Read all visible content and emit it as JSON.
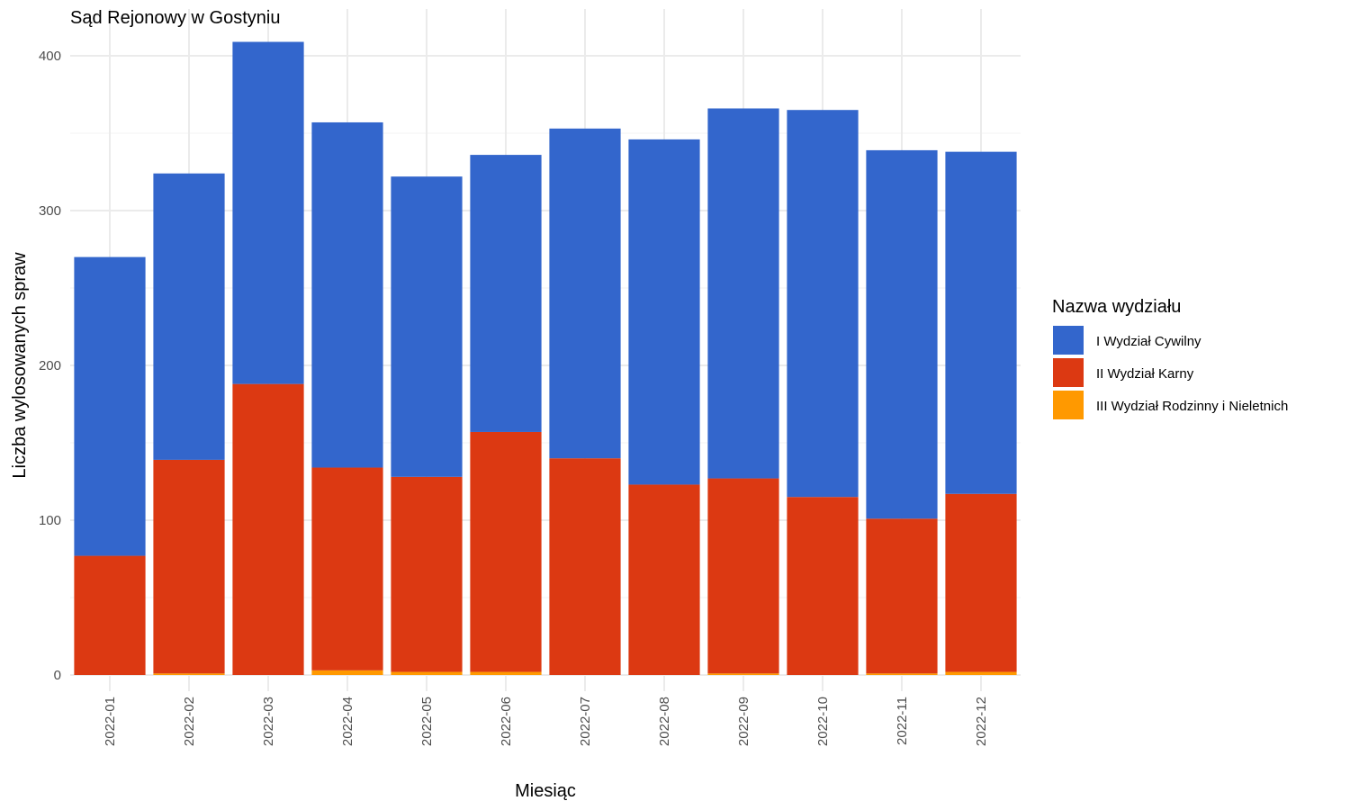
{
  "chart_data": {
    "type": "bar",
    "stacked": true,
    "title": "Sąd Rejonowy w Gostyniu",
    "xlabel": "Miesiąc",
    "ylabel": "Liczba wylosowanych spraw",
    "ylim": [
      0,
      420
    ],
    "yticks": [
      0,
      100,
      200,
      300,
      400
    ],
    "grid": true,
    "legend_position": "right",
    "legend_title": "Nazwa wydziału",
    "categories": [
      "2022-01",
      "2022-02",
      "2022-03",
      "2022-04",
      "2022-05",
      "2022-06",
      "2022-07",
      "2022-08",
      "2022-09",
      "2022-10",
      "2022-11",
      "2022-12"
    ],
    "series": [
      {
        "name": "I Wydział Cywilny",
        "color": "#3366cc",
        "values": [
          193,
          185,
          221,
          223,
          194,
          179,
          213,
          223,
          239,
          250,
          238,
          221
        ]
      },
      {
        "name": "II Wydział Karny",
        "color": "#dc3912",
        "values": [
          77,
          138,
          188,
          131,
          126,
          155,
          140,
          123,
          126,
          115,
          100,
          115
        ]
      },
      {
        "name": "III Wydział Rodzinny i Nieletnich",
        "color": "#ff9900",
        "values": [
          0,
          1,
          0,
          3,
          2,
          2,
          0,
          0,
          1,
          0,
          1,
          2
        ]
      }
    ]
  }
}
